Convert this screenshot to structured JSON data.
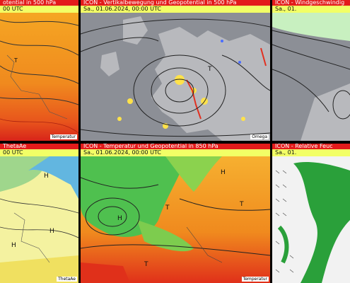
{
  "panels": [
    {
      "title": "otential in 500 hPa",
      "date": "00 UTC",
      "footer": "Temperatur"
    },
    {
      "title": "ICON - Vertikalbewegung und Geopotential in 500 hPa",
      "date": "Sa., 01.06.2024, 00:00 UTC",
      "footer": "Omega"
    },
    {
      "title": "ICON - Windgeschwindig",
      "date": "Sa., 01.",
      "footer": ""
    },
    {
      "title": "ThetaAe",
      "date": "00 UTC",
      "footer": "ThetaAe"
    },
    {
      "title": "ICON - Temperatur und Geopotential in 850 hPa",
      "date": "Sa., 01.06.2024, 00:00 UTC",
      "footer": "Temperatur"
    },
    {
      "title": "ICON - Relative Feuc",
      "date": "Sa., 01.",
      "footer": ""
    }
  ],
  "map_labels": {
    "high": "H",
    "low": "T"
  },
  "colors": {
    "header_red": "#e31b1b",
    "header_yellow": "#f2ff66",
    "temp_orange": "#f08a1e",
    "temp_red": "#e0301a",
    "omega_gray": "#8c8f96",
    "theta_yellow": "#f4f2a0",
    "temp_green": "#4fc04f",
    "rh_white": "#f2f2f2"
  }
}
